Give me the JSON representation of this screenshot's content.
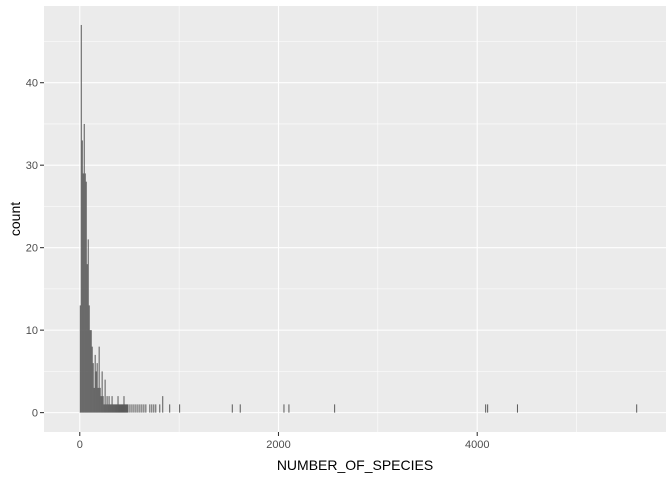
{
  "chart_data": {
    "type": "bar",
    "xlabel": "NUMBER_OF_SPECIES",
    "ylabel": "count",
    "xlim": [
      -360,
      5900
    ],
    "ylim": [
      -2.35,
      49.3
    ],
    "x_ticks": [
      0,
      2000,
      4000
    ],
    "x_tick_labels": [
      "0",
      "2000",
      "4000"
    ],
    "x_minor_ticks": [
      1000,
      3000,
      5000
    ],
    "y_ticks": [
      0,
      10,
      20,
      30,
      40
    ],
    "y_tick_labels": [
      "0",
      "10",
      "20",
      "30",
      "40"
    ],
    "y_minor_ticks": [
      5,
      15,
      25,
      35,
      45
    ],
    "bin_width": 10,
    "grid": true,
    "bar_color": "#595959",
    "panel_color": "#ebebeb",
    "x": [
      0,
      10,
      20,
      30,
      40,
      50,
      60,
      70,
      80,
      90,
      100,
      110,
      120,
      130,
      140,
      150,
      160,
      170,
      180,
      190,
      200,
      210,
      220,
      230,
      240,
      250,
      260,
      270,
      280,
      290,
      300,
      310,
      320,
      330,
      340,
      350,
      360,
      370,
      380,
      390,
      400,
      410,
      420,
      430,
      440,
      450,
      460,
      470,
      480,
      500,
      520,
      540,
      560,
      580,
      600,
      620,
      640,
      660,
      700,
      720,
      740,
      760,
      800,
      830,
      900,
      1000,
      1530,
      1610,
      2050,
      2100,
      2560,
      4080,
      4100,
      4400,
      5600
    ],
    "values": [
      13,
      47,
      33,
      29,
      35,
      29,
      28,
      18,
      21,
      13,
      10,
      10,
      8,
      6,
      3,
      7,
      5,
      6,
      3,
      8,
      3,
      2,
      5,
      2,
      1,
      4,
      1,
      2,
      1,
      2,
      1,
      1,
      2,
      1,
      1,
      1,
      1,
      1,
      2,
      1,
      1,
      1,
      1,
      1,
      2,
      1,
      1,
      1,
      1,
      1,
      1,
      1,
      1,
      1,
      1,
      1,
      1,
      1,
      1,
      1,
      1,
      1,
      1,
      2,
      1,
      1,
      1,
      1,
      1,
      1,
      1,
      1,
      1,
      1,
      1
    ]
  }
}
